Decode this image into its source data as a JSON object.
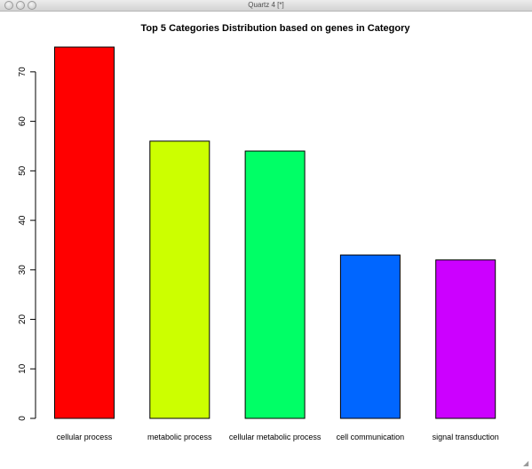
{
  "window": {
    "title": "Quartz 4 [*]",
    "buttons": [
      "close-icon",
      "minimize-icon",
      "zoom-icon"
    ]
  },
  "chart_data": {
    "type": "bar",
    "title": "Top 5 Categories Distribution based on genes in Category",
    "xlabel": "",
    "ylabel": "",
    "categories": [
      "cellular process",
      "metabolic process",
      "cellular metabolic process",
      "cell communication",
      "signal transduction"
    ],
    "values": [
      75,
      56,
      54,
      33,
      32
    ],
    "colors": [
      "#ff0000",
      "#ccff00",
      "#00ff66",
      "#0066ff",
      "#cc00ff"
    ],
    "ylim": [
      0,
      75
    ],
    "yticks": [
      0,
      10,
      20,
      30,
      40,
      50,
      60,
      70
    ],
    "grid": false,
    "legend": "none"
  }
}
